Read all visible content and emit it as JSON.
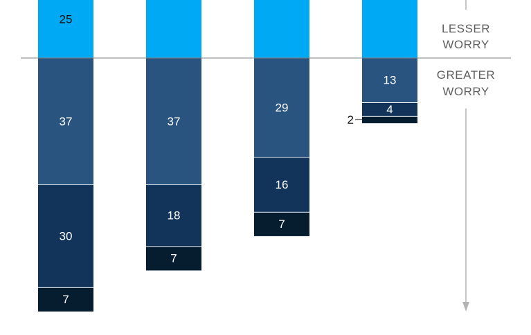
{
  "chart_data": {
    "type": "bar",
    "stacked": true,
    "orientation": "diverging-vertical",
    "title": "",
    "xlabel": "",
    "ylabel": "",
    "categories": [
      "",
      "",
      "",
      ""
    ],
    "series": [
      {
        "key": "lesser",
        "values": [
          25,
          null,
          null,
          null
        ],
        "color": "#00a9f4",
        "text_color": "#111111"
      },
      {
        "key": "greater_1",
        "values": [
          37,
          37,
          29,
          13
        ],
        "color": "#2a5480",
        "text_color": "#ffffff"
      },
      {
        "key": "greater_2",
        "values": [
          30,
          18,
          16,
          4
        ],
        "color": "#13345a",
        "text_color": "#ffffff"
      },
      {
        "key": "greater_3",
        "values": [
          7,
          7,
          7,
          2
        ],
        "color": "#061d30",
        "text_color": "#ffffff"
      }
    ],
    "labels": [
      [
        "25",
        "37",
        "30",
        "7"
      ],
      [
        "",
        "37",
        "18",
        "7"
      ],
      [
        "",
        "29",
        "16",
        "7"
      ],
      [
        "",
        "13",
        "4",
        "2"
      ]
    ],
    "callouts": [
      {
        "bar": 3,
        "series": "greater_3"
      }
    ],
    "side_labels": {
      "lesser": [
        "LESSER",
        "WORRY"
      ],
      "greater": [
        "GREATER",
        "WORRY"
      ]
    },
    "colors": {
      "baseline": "#808080",
      "arrow": "#b3b3b3",
      "side_text": "#5f5f5f"
    }
  }
}
